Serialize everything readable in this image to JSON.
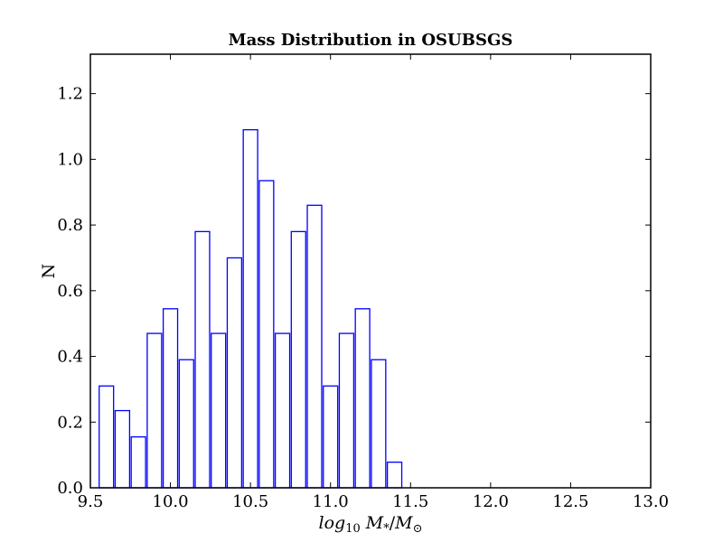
{
  "chart_data": {
    "type": "bar",
    "title": "Mass Distribution in OSUBSGS",
    "xlabel_parts": {
      "log": "log",
      "log_sub": "10",
      "M1": "M",
      "M1_sub": "*",
      "slash": "/",
      "M2": "M",
      "M2_sub": "⊙"
    },
    "ylabel": "N",
    "xlim": [
      9.5,
      13.0
    ],
    "ylim": [
      0.0,
      1.32
    ],
    "xticks": [
      "9.5",
      "10.0",
      "10.5",
      "11.0",
      "11.5",
      "12.0",
      "12.5",
      "13.0"
    ],
    "yticks": [
      "0.0",
      "0.2",
      "0.4",
      "0.6",
      "0.8",
      "1.0",
      "1.2"
    ],
    "bar_color": "#0000ff",
    "bar_width": 0.09,
    "bars": [
      {
        "x": 9.6,
        "value": 0.31
      },
      {
        "x": 9.7,
        "value": 0.235
      },
      {
        "x": 9.8,
        "value": 0.155
      },
      {
        "x": 9.9,
        "value": 0.47
      },
      {
        "x": 10.0,
        "value": 0.545
      },
      {
        "x": 10.1,
        "value": 0.39
      },
      {
        "x": 10.2,
        "value": 0.78
      },
      {
        "x": 10.3,
        "value": 0.47
      },
      {
        "x": 10.4,
        "value": 0.7
      },
      {
        "x": 10.5,
        "value": 1.09
      },
      {
        "x": 10.6,
        "value": 0.935
      },
      {
        "x": 10.7,
        "value": 0.47
      },
      {
        "x": 10.8,
        "value": 0.78
      },
      {
        "x": 10.9,
        "value": 0.86
      },
      {
        "x": 11.0,
        "value": 0.31
      },
      {
        "x": 11.1,
        "value": 0.47
      },
      {
        "x": 11.2,
        "value": 0.545
      },
      {
        "x": 11.3,
        "value": 0.39
      },
      {
        "x": 11.4,
        "value": 0.078
      }
    ]
  }
}
